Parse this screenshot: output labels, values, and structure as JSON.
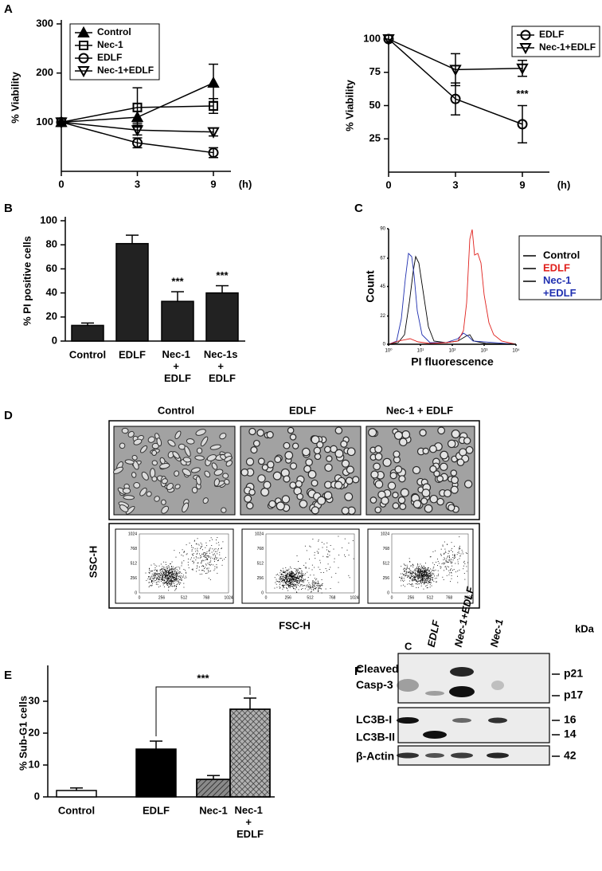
{
  "panel_labels": [
    "A",
    "B",
    "C",
    "D",
    "E",
    "F"
  ],
  "chart_data": [
    {
      "type": "line",
      "y_label": "% Viability",
      "x_unit": "(h)",
      "categories": [
        "0",
        "3",
        "9"
      ],
      "ylim": [
        0,
        300
      ],
      "yticks": [
        100,
        200,
        300
      ],
      "legend": "upper left",
      "series": [
        {
          "name": "Control",
          "marker": "triangle",
          "color": "#000000",
          "values": [
            100,
            110,
            180
          ],
          "errors": [
            0,
            12,
            38
          ]
        },
        {
          "name": "Nec-1",
          "marker": "square",
          "color": "#000000",
          "values": [
            100,
            130,
            133
          ],
          "errors": [
            0,
            40,
            15
          ]
        },
        {
          "name": "EDLF",
          "marker": "circle",
          "color": "#000000",
          "values": [
            100,
            58,
            38
          ],
          "errors": [
            0,
            10,
            10
          ]
        },
        {
          "name": "Nec-1+EDLF",
          "marker": "triangle-down",
          "color": "#000000",
          "values": [
            100,
            84,
            80
          ],
          "errors": [
            0,
            10,
            8
          ]
        }
      ]
    },
    {
      "type": "line",
      "y_label": "% Viability",
      "x_unit": "(h)",
      "categories": [
        "0",
        "3",
        "9"
      ],
      "ylim": [
        0,
        100
      ],
      "yticks": [
        25,
        50,
        75,
        100
      ],
      "legend": "upper right",
      "series": [
        {
          "name": "EDLF",
          "marker": "circle",
          "color": "#000000",
          "values": [
            100,
            55,
            36
          ],
          "errors": [
            0,
            12,
            14
          ]
        },
        {
          "name": "Nec-1+EDLF",
          "marker": "triangle-down",
          "color": "#000000",
          "values": [
            100,
            77,
            78
          ],
          "errors": [
            0,
            12,
            6
          ]
        }
      ],
      "annotations": [
        {
          "text": "***",
          "series": 0,
          "index": 2
        }
      ]
    },
    {
      "type": "bar",
      "y_label": "% PI positive cells",
      "categories": [
        "Control",
        "EDLF",
        "Nec-1 + EDLF",
        "Nec-1s + EDLF"
      ],
      "values": [
        13,
        81,
        33,
        40
      ],
      "errors": [
        2,
        7,
        8,
        6
      ],
      "color": "#222222",
      "ylim": [
        0,
        100
      ],
      "yticks": [
        0,
        20,
        40,
        60,
        80,
        100
      ],
      "annotations": [
        {
          "text": "***",
          "index": 2
        },
        {
          "text": "***",
          "index": 3
        }
      ]
    },
    {
      "type": "flow-histogram",
      "x_label": "PI fluorescence",
      "y_label": "Count",
      "xscale": "log",
      "xlim": [
        1,
        10000
      ],
      "xticks": [
        {
          "value": 1,
          "label": "10⁰"
        },
        {
          "value": 10,
          "label": "10¹"
        },
        {
          "value": 100,
          "label": "10²"
        },
        {
          "value": 1000,
          "label": "10³"
        },
        {
          "value": 10000,
          "label": "10⁴"
        }
      ],
      "ylim": [
        0,
        90
      ],
      "yticks": [
        0,
        22,
        45,
        67,
        90
      ],
      "legend": [
        {
          "name": "Control",
          "color": "#000000"
        },
        {
          "name": "EDLF",
          "color": "#e0201c"
        },
        {
          "name": "Nec-1 +EDLF",
          "color": "#2030b0"
        }
      ]
    },
    {
      "type": "bar",
      "y_label": "% Sub-G1 cells",
      "categories": [
        "Control",
        "EDLF",
        "Nec-1",
        "Nec-1 + EDLF"
      ],
      "values": [
        2,
        15,
        5.5,
        27.5
      ],
      "errors": [
        0.8,
        2.5,
        1.2,
        3.5
      ],
      "colors": [
        "#ffffff",
        "#000000",
        "#8a8a8a",
        "#b0b0b0"
      ],
      "patterns": [
        "solid",
        "solid",
        "hatch",
        "crosshatch"
      ],
      "ylim": [
        0,
        40
      ],
      "yticks": [
        0,
        10,
        20,
        30
      ],
      "bracket": {
        "text": "***",
        "from": 1,
        "to": 3
      }
    }
  ],
  "microscopy": {
    "columns": [
      "Control",
      "EDLF",
      "Nec-1 + EDLF"
    ],
    "scatter_y_label": "SSC-H",
    "scatter_x_label": "FSC-H",
    "scatter_ticks": [
      0,
      256,
      512,
      768,
      1024
    ]
  },
  "western_blot": {
    "lanes": [
      "C",
      "EDLF",
      "Nec-1+EDLF",
      "Nec-1"
    ],
    "unit": "kDa",
    "blots": [
      {
        "labels": [
          "Cleaved Casp-3"
        ],
        "markers": [
          "p21",
          "p17"
        ]
      },
      {
        "labels": [
          "LC3B-I",
          "LC3B-II"
        ],
        "markers": [
          "16",
          "14"
        ]
      },
      {
        "labels": [
          "β-Actin"
        ],
        "markers": [
          "42"
        ]
      }
    ]
  }
}
